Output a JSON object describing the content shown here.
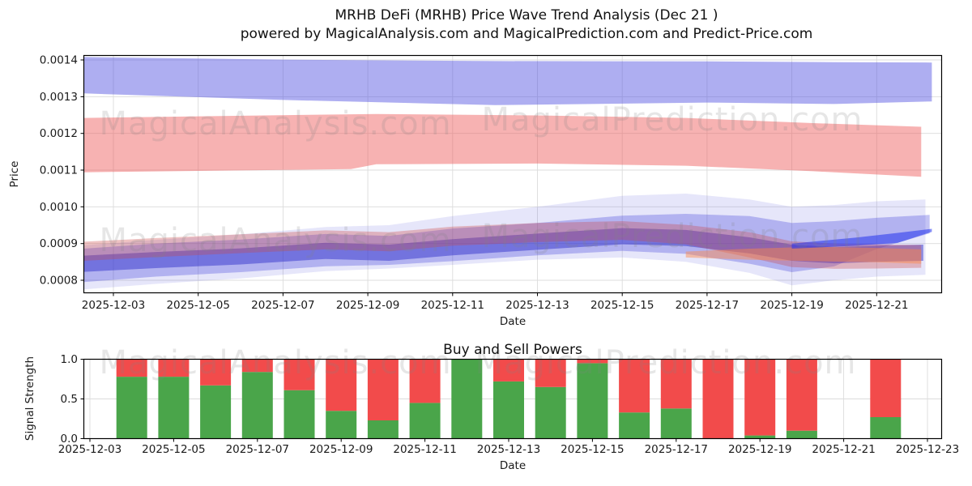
{
  "figure": {
    "title": "MRHB DeFi (MRHB) Price Wave Trend Analysis (Dec 21 )",
    "subtitle": "powered by MagicalAnalysis.com and MagicalPrediction.com and Predict-Price.com"
  },
  "watermarks": {
    "analysis": "MagicalAnalysis.com",
    "prediction": "MagicalPrediction.com"
  },
  "colors": {
    "buy_green": "#4aa54a",
    "sell_red": "#f24b4b",
    "upper_blue_band": "#4b4be0",
    "upper_red_band": "#ee5555",
    "grid": "#dcdcdc",
    "axis": "#000000",
    "tick_text": "#1a1a1a",
    "watermark": "#808080"
  },
  "chart_data": [
    {
      "type": "area",
      "name": "price-wave-trend",
      "title": "",
      "xlabel": "Date",
      "ylabel": "Price",
      "x_domain": [
        "2025-12-02",
        "2025-12-23"
      ],
      "ylim": [
        0.000765,
        0.001413
      ],
      "yticks": [
        "0.0008",
        "0.0009",
        "0.0010",
        "0.0011",
        "0.0012",
        "0.0013",
        "0.0014"
      ],
      "xticks": [
        "2025-12-03",
        "2025-12-05",
        "2025-12-07",
        "2025-12-09",
        "2025-12-11",
        "2025-12-13",
        "2025-12-15",
        "2025-12-17",
        "2025-12-19",
        "2025-12-21"
      ],
      "grid": true,
      "bands": [
        {
          "name": "upper-blue-forecast",
          "color": "#4b4be0",
          "opacity": 0.45,
          "x_days": [
            2.3,
            7,
            12,
            17,
            20,
            22.3
          ],
          "top": [
            0.001408,
            0.001401,
            0.001397,
            0.001396,
            0.001394,
            0.001393
          ],
          "bottom": [
            0.001309,
            0.001291,
            0.001277,
            0.001284,
            0.00128,
            0.001287
          ]
        },
        {
          "name": "upper-red-forecast",
          "color": "#ee5555",
          "opacity": 0.45,
          "x_days": [
            2.3,
            8.6,
            9.2,
            13,
            16.5,
            19.5,
            22.05
          ],
          "top": [
            0.001242,
            0.001252,
            0.001253,
            0.001249,
            0.001242,
            0.001228,
            0.001218
          ],
          "bottom": [
            0.001094,
            0.001103,
            0.001116,
            0.001118,
            0.001112,
            0.001097,
            0.001082
          ]
        },
        {
          "name": "wave-outer-blue",
          "color": "#5555e0",
          "opacity": 0.15,
          "x_days": [
            2.3,
            4,
            6,
            8,
            9.5,
            11,
            13,
            15,
            16.5,
            18,
            19,
            20,
            21,
            22.15
          ],
          "top": [
            0.000895,
            0.00091,
            0.000925,
            0.000945,
            0.00095,
            0.000975,
            0.001,
            0.00103,
            0.001036,
            0.00102,
            0.001,
            0.001005,
            0.001015,
            0.00102
          ],
          "bottom": [
            0.000775,
            0.00079,
            0.000805,
            0.000825,
            0.000832,
            0.000842,
            0.000856,
            0.000862,
            0.00085,
            0.00082,
            0.000786,
            0.0008,
            0.00081,
            0.000815
          ]
        },
        {
          "name": "wave-mid-blue",
          "color": "#4444dd",
          "opacity": 0.32,
          "x_days": [
            2.3,
            4,
            6,
            8,
            9.5,
            11,
            13,
            15,
            16.5,
            18,
            19,
            20,
            21,
            22.25
          ],
          "top": [
            0.000886,
            0.0009,
            0.000911,
            0.000926,
            0.000921,
            0.000941,
            0.000956,
            0.000976,
            0.000981,
            0.000975,
            0.000956,
            0.000961,
            0.00097,
            0.000978
          ],
          "bottom": [
            0.000795,
            0.00081,
            0.000822,
            0.000838,
            0.000842,
            0.000852,
            0.000868,
            0.00088,
            0.000872,
            0.000845,
            0.000822,
            0.000838,
            0.000885,
            0.000928
          ]
        },
        {
          "name": "wave-core-dark-blue",
          "color": "#3333cc",
          "opacity": 0.5,
          "x_days": [
            2.3,
            4,
            6,
            8,
            9.5,
            11,
            13,
            15,
            16.5,
            18,
            19,
            20,
            21,
            22.1
          ],
          "top": [
            0.000867,
            0.000877,
            0.000887,
            0.000902,
            0.000897,
            0.000912,
            0.000927,
            0.000942,
            0.000937,
            0.000917,
            0.000897,
            0.00089,
            0.000894,
            0.000897
          ],
          "bottom": [
            0.000823,
            0.000833,
            0.000843,
            0.000858,
            0.000853,
            0.000868,
            0.000883,
            0.000898,
            0.000893,
            0.000873,
            0.000853,
            0.000846,
            0.00085,
            0.000853
          ]
        },
        {
          "name": "wave-red-overlay",
          "color": "#cc4444",
          "opacity": 0.32,
          "x_days": [
            2.3,
            4,
            6,
            8,
            9.5,
            11,
            13,
            15,
            16.5,
            18,
            19,
            20,
            21,
            22.05
          ],
          "top": [
            0.000905,
            0.000915,
            0.000925,
            0.000936,
            0.000931,
            0.000946,
            0.000956,
            0.000961,
            0.000951,
            0.000931,
            0.000906,
            0.0009,
            0.000898,
            0.000896
          ],
          "bottom": [
            0.000853,
            0.000863,
            0.000874,
            0.000884,
            0.000879,
            0.000894,
            0.000904,
            0.00091,
            0.000898,
            0.000862,
            0.000836,
            0.000831,
            0.000832,
            0.000834
          ]
        },
        {
          "name": "wave-salmon-right",
          "color": "#ff8844",
          "opacity": 0.45,
          "x_days": [
            16.5,
            18,
            19.5,
            21,
            22.05
          ],
          "top": [
            0.000878,
            0.000886,
            0.000891,
            0.000888,
            0.000884
          ],
          "bottom": [
            0.000862,
            0.000856,
            0.000852,
            0.000849,
            0.000845
          ]
        },
        {
          "name": "wave-bright-blue-streak",
          "color": "#2233ee",
          "opacity": 0.55,
          "x_days": [
            19,
            20.5,
            21.5,
            22.3
          ],
          "top": [
            0.0009,
            0.000916,
            0.000929,
            0.00094
          ],
          "bottom": [
            0.000886,
            0.000894,
            0.000902,
            0.000932
          ]
        }
      ]
    },
    {
      "type": "bar",
      "name": "buy-sell-powers",
      "title": "Buy and Sell Powers",
      "xlabel": "Date",
      "ylabel": "Signal Strength",
      "x_domain": [
        "2025-12-02",
        "2025-12-23"
      ],
      "ylim": [
        0,
        1
      ],
      "bar_total": 1.0,
      "yticks": [
        "0.0",
        "0.5",
        "1.0"
      ],
      "xticks": [
        "2025-12-03",
        "2025-12-05",
        "2025-12-07",
        "2025-12-09",
        "2025-12-11",
        "2025-12-13",
        "2025-12-15",
        "2025-12-17",
        "2025-12-19",
        "2025-12-21",
        "2025-12-23"
      ],
      "grid": true,
      "categories": [
        "2025-12-04",
        "2025-12-05",
        "2025-12-06",
        "2025-12-07",
        "2025-12-08",
        "2025-12-09",
        "2025-12-10",
        "2025-12-11",
        "2025-12-12",
        "2025-12-13",
        "2025-12-14",
        "2025-12-15",
        "2025-12-16",
        "2025-12-17",
        "2025-12-18",
        "2025-12-19",
        "2025-12-20",
        "2025-12-22"
      ],
      "series": [
        {
          "name": "Buy Power",
          "color": "#4aa54a",
          "values": [
            0.78,
            0.78,
            0.67,
            0.84,
            0.61,
            0.35,
            0.23,
            0.45,
            1.0,
            0.72,
            0.65,
            0.95,
            0.33,
            0.38,
            0.0,
            0.04,
            0.1,
            0.27
          ]
        },
        {
          "name": "Sell Power",
          "color": "#f24b4b",
          "values": [
            0.22,
            0.22,
            0.33,
            0.16,
            0.39,
            0.65,
            0.77,
            0.55,
            0.0,
            0.28,
            0.35,
            0.05,
            0.67,
            0.62,
            1.0,
            0.96,
            0.9,
            0.73
          ]
        }
      ]
    }
  ]
}
